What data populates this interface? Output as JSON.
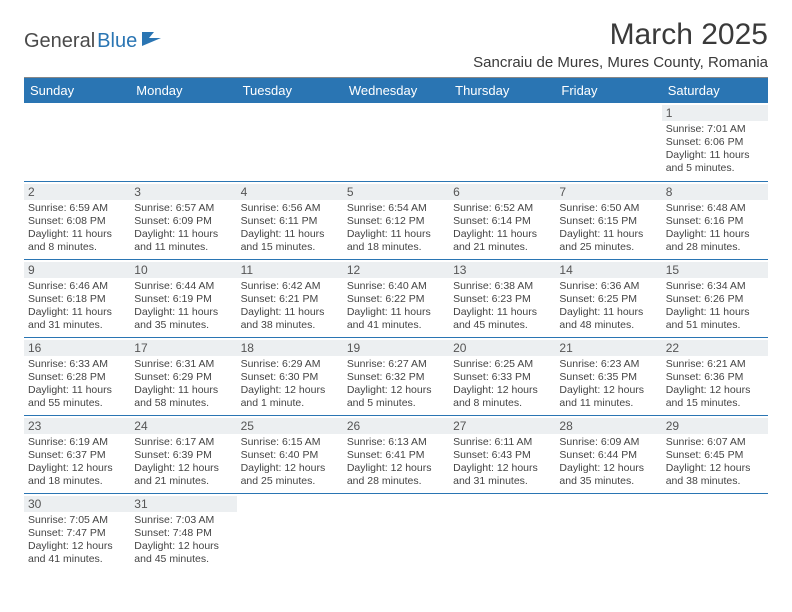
{
  "logo": {
    "part1": "General",
    "part2": "Blue"
  },
  "title": "March 2025",
  "location": "Sancraiu de Mures, Mures County, Romania",
  "colors": {
    "header_bg": "#2a75b3",
    "header_fg": "#ffffff",
    "daynum_bg": "#eceff1",
    "text": "#3a3a3a",
    "border": "#2a75b3"
  },
  "daynames": [
    "Sunday",
    "Monday",
    "Tuesday",
    "Wednesday",
    "Thursday",
    "Friday",
    "Saturday"
  ],
  "weeks": [
    [
      null,
      null,
      null,
      null,
      null,
      null,
      {
        "n": "1",
        "sr": "Sunrise: 7:01 AM",
        "ss": "Sunset: 6:06 PM",
        "dl": "Daylight: 11 hours and 5 minutes."
      }
    ],
    [
      {
        "n": "2",
        "sr": "Sunrise: 6:59 AM",
        "ss": "Sunset: 6:08 PM",
        "dl": "Daylight: 11 hours and 8 minutes."
      },
      {
        "n": "3",
        "sr": "Sunrise: 6:57 AM",
        "ss": "Sunset: 6:09 PM",
        "dl": "Daylight: 11 hours and 11 minutes."
      },
      {
        "n": "4",
        "sr": "Sunrise: 6:56 AM",
        "ss": "Sunset: 6:11 PM",
        "dl": "Daylight: 11 hours and 15 minutes."
      },
      {
        "n": "5",
        "sr": "Sunrise: 6:54 AM",
        "ss": "Sunset: 6:12 PM",
        "dl": "Daylight: 11 hours and 18 minutes."
      },
      {
        "n": "6",
        "sr": "Sunrise: 6:52 AM",
        "ss": "Sunset: 6:14 PM",
        "dl": "Daylight: 11 hours and 21 minutes."
      },
      {
        "n": "7",
        "sr": "Sunrise: 6:50 AM",
        "ss": "Sunset: 6:15 PM",
        "dl": "Daylight: 11 hours and 25 minutes."
      },
      {
        "n": "8",
        "sr": "Sunrise: 6:48 AM",
        "ss": "Sunset: 6:16 PM",
        "dl": "Daylight: 11 hours and 28 minutes."
      }
    ],
    [
      {
        "n": "9",
        "sr": "Sunrise: 6:46 AM",
        "ss": "Sunset: 6:18 PM",
        "dl": "Daylight: 11 hours and 31 minutes."
      },
      {
        "n": "10",
        "sr": "Sunrise: 6:44 AM",
        "ss": "Sunset: 6:19 PM",
        "dl": "Daylight: 11 hours and 35 minutes."
      },
      {
        "n": "11",
        "sr": "Sunrise: 6:42 AM",
        "ss": "Sunset: 6:21 PM",
        "dl": "Daylight: 11 hours and 38 minutes."
      },
      {
        "n": "12",
        "sr": "Sunrise: 6:40 AM",
        "ss": "Sunset: 6:22 PM",
        "dl": "Daylight: 11 hours and 41 minutes."
      },
      {
        "n": "13",
        "sr": "Sunrise: 6:38 AM",
        "ss": "Sunset: 6:23 PM",
        "dl": "Daylight: 11 hours and 45 minutes."
      },
      {
        "n": "14",
        "sr": "Sunrise: 6:36 AM",
        "ss": "Sunset: 6:25 PM",
        "dl": "Daylight: 11 hours and 48 minutes."
      },
      {
        "n": "15",
        "sr": "Sunrise: 6:34 AM",
        "ss": "Sunset: 6:26 PM",
        "dl": "Daylight: 11 hours and 51 minutes."
      }
    ],
    [
      {
        "n": "16",
        "sr": "Sunrise: 6:33 AM",
        "ss": "Sunset: 6:28 PM",
        "dl": "Daylight: 11 hours and 55 minutes."
      },
      {
        "n": "17",
        "sr": "Sunrise: 6:31 AM",
        "ss": "Sunset: 6:29 PM",
        "dl": "Daylight: 11 hours and 58 minutes."
      },
      {
        "n": "18",
        "sr": "Sunrise: 6:29 AM",
        "ss": "Sunset: 6:30 PM",
        "dl": "Daylight: 12 hours and 1 minute."
      },
      {
        "n": "19",
        "sr": "Sunrise: 6:27 AM",
        "ss": "Sunset: 6:32 PM",
        "dl": "Daylight: 12 hours and 5 minutes."
      },
      {
        "n": "20",
        "sr": "Sunrise: 6:25 AM",
        "ss": "Sunset: 6:33 PM",
        "dl": "Daylight: 12 hours and 8 minutes."
      },
      {
        "n": "21",
        "sr": "Sunrise: 6:23 AM",
        "ss": "Sunset: 6:35 PM",
        "dl": "Daylight: 12 hours and 11 minutes."
      },
      {
        "n": "22",
        "sr": "Sunrise: 6:21 AM",
        "ss": "Sunset: 6:36 PM",
        "dl": "Daylight: 12 hours and 15 minutes."
      }
    ],
    [
      {
        "n": "23",
        "sr": "Sunrise: 6:19 AM",
        "ss": "Sunset: 6:37 PM",
        "dl": "Daylight: 12 hours and 18 minutes."
      },
      {
        "n": "24",
        "sr": "Sunrise: 6:17 AM",
        "ss": "Sunset: 6:39 PM",
        "dl": "Daylight: 12 hours and 21 minutes."
      },
      {
        "n": "25",
        "sr": "Sunrise: 6:15 AM",
        "ss": "Sunset: 6:40 PM",
        "dl": "Daylight: 12 hours and 25 minutes."
      },
      {
        "n": "26",
        "sr": "Sunrise: 6:13 AM",
        "ss": "Sunset: 6:41 PM",
        "dl": "Daylight: 12 hours and 28 minutes."
      },
      {
        "n": "27",
        "sr": "Sunrise: 6:11 AM",
        "ss": "Sunset: 6:43 PM",
        "dl": "Daylight: 12 hours and 31 minutes."
      },
      {
        "n": "28",
        "sr": "Sunrise: 6:09 AM",
        "ss": "Sunset: 6:44 PM",
        "dl": "Daylight: 12 hours and 35 minutes."
      },
      {
        "n": "29",
        "sr": "Sunrise: 6:07 AM",
        "ss": "Sunset: 6:45 PM",
        "dl": "Daylight: 12 hours and 38 minutes."
      }
    ],
    [
      {
        "n": "30",
        "sr": "Sunrise: 7:05 AM",
        "ss": "Sunset: 7:47 PM",
        "dl": "Daylight: 12 hours and 41 minutes."
      },
      {
        "n": "31",
        "sr": "Sunrise: 7:03 AM",
        "ss": "Sunset: 7:48 PM",
        "dl": "Daylight: 12 hours and 45 minutes."
      },
      null,
      null,
      null,
      null,
      null
    ]
  ]
}
